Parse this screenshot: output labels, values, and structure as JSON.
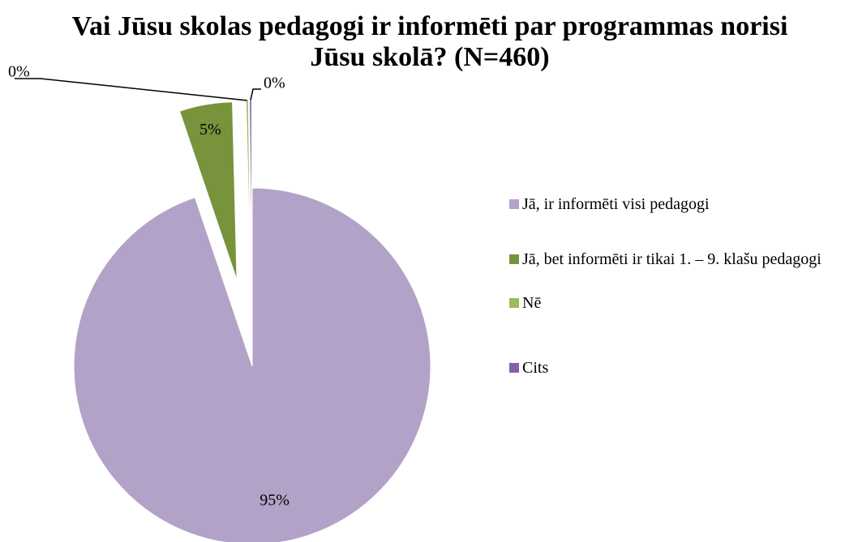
{
  "chart_data": {
    "type": "pie",
    "title": "Vai Jūsu skolas pedagogi ir informēti par programmas norisi Jūsu skolā? (N=460)",
    "categories": [
      "Jā, ir informēti visi pedagogi",
      "Jā, bet informēti ir tikai 1. – 9. klašu pedagogi",
      "Nē",
      "Cits"
    ],
    "values": [
      94.8,
      4.8,
      0.2,
      0.2
    ],
    "value_labels": [
      "95%",
      "5%",
      "0%",
      "0%"
    ],
    "colors": [
      "#b3a2c7",
      "#77933c",
      "#9bbb59",
      "#8064a2"
    ],
    "legend": "right"
  }
}
